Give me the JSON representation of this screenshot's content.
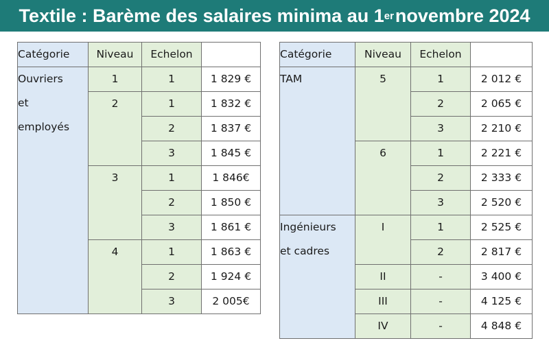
{
  "title": {
    "main": "Textile : Barème des salaires minima au 1",
    "sup": "er",
    "tail": " novembre 2024"
  },
  "headers": {
    "category": "Catégorie",
    "level": "Niveau",
    "step": "Echelon"
  },
  "left_table": {
    "category_lines": [
      "Ouvriers",
      "et",
      "employés"
    ],
    "rows": [
      {
        "niveau": "1",
        "echelon": "1",
        "salaire": "1 829 €"
      },
      {
        "niveau": "2",
        "echelon": "1",
        "salaire": "1 832 €"
      },
      {
        "niveau": "",
        "echelon": "2",
        "salaire": "1 837 €"
      },
      {
        "niveau": "",
        "echelon": "3",
        "salaire": "1 845 €"
      },
      {
        "niveau": "3",
        "echelon": "1",
        "salaire": "1 846€"
      },
      {
        "niveau": "",
        "echelon": "2",
        "salaire": "1 850 €"
      },
      {
        "niveau": "",
        "echelon": "3",
        "salaire": "1 861 €"
      },
      {
        "niveau": "4",
        "echelon": "1",
        "salaire": "1 863 €"
      },
      {
        "niveau": "",
        "echelon": "2",
        "salaire": "1 924 €"
      },
      {
        "niveau": "",
        "echelon": "3",
        "salaire": "2 005€"
      }
    ]
  },
  "right_table": {
    "category_tam": "TAM",
    "category_ic_lines": [
      "Ingénieurs",
      "et cadres"
    ],
    "rows": [
      {
        "niveau": "5",
        "echelon": "1",
        "salaire": "2 012 €"
      },
      {
        "niveau": "",
        "echelon": "2",
        "salaire": "2 065 €"
      },
      {
        "niveau": "",
        "echelon": "3",
        "salaire": "2 210 €"
      },
      {
        "niveau": "6",
        "echelon": "1",
        "salaire": "2 221 €"
      },
      {
        "niveau": "",
        "echelon": "2",
        "salaire": "2 333 €"
      },
      {
        "niveau": "",
        "echelon": "3",
        "salaire": "2 520 €"
      },
      {
        "niveau": "I",
        "echelon": "1",
        "salaire": "2 525 €"
      },
      {
        "niveau": "",
        "echelon": "2",
        "salaire": "2 817 €"
      },
      {
        "niveau": "II",
        "echelon": "-",
        "salaire": "3 400 €"
      },
      {
        "niveau": "III",
        "echelon": "-",
        "salaire": "4 125 €"
      },
      {
        "niveau": "IV",
        "echelon": "-",
        "salaire": "4 848 €"
      }
    ]
  }
}
